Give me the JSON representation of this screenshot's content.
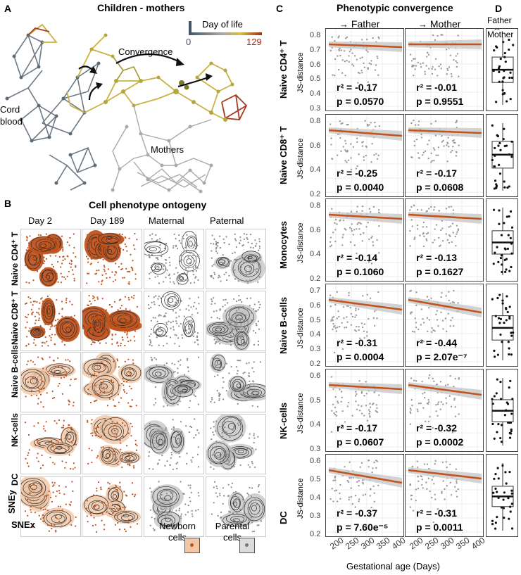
{
  "panelA": {
    "letter": "A",
    "title": "Children - mothers",
    "legend_title": "Day of life",
    "legend_min": "0",
    "legend_max": "129",
    "labels": {
      "convergence": "Convergence",
      "cord": "Cord\nblood",
      "cord1": "Cord",
      "cord2": "blood",
      "mothers": "Mothers"
    }
  },
  "panelB": {
    "letter": "B",
    "title": "Cell phenotype ontogeny",
    "columns": [
      "Day 2",
      "Day 189",
      "Maternal",
      "Paternal"
    ],
    "rows": [
      "Naive CD4⁺ T",
      "Naive CD8⁺ T",
      "Naive B-cells",
      "NK-cells",
      "DC"
    ],
    "xaxis": "SNEx",
    "yaxis": "SNEy",
    "legend_newborn": [
      "Newborn",
      "cells"
    ],
    "legend_parental": [
      "Parental",
      "cells"
    ]
  },
  "panelC": {
    "letter": "C",
    "title": "Phenotypic convergence",
    "col_father": "Father",
    "col_mother": "Mother",
    "ylabel": "JS-distance",
    "xlabel": "Gestational age (Days)",
    "xticks": [
      "200",
      "250",
      "300",
      "350",
      "400"
    ],
    "rows": [
      {
        "name": "Naive CD4⁺ T",
        "yticks": [
          "0.8",
          "0.7",
          "0.6",
          "0.5",
          "0.4",
          "0.3"
        ],
        "father": {
          "r2": "r² = -0.17",
          "p": "p = 0.0570"
        },
        "mother": {
          "r2": "r² = -0.01",
          "p": "p = 0.9551"
        }
      },
      {
        "name": "Naive CD8⁺ T",
        "yticks": [
          "0.8",
          "0.6",
          "0.4",
          "0.2"
        ],
        "father": {
          "r2": "r² = -0.25",
          "p": "p = 0.0040"
        },
        "mother": {
          "r2": "r² = -0.17",
          "p": "p = 0.0608"
        }
      },
      {
        "name": "Monocytes",
        "yticks": [
          "0.8",
          "0.6",
          "0.4",
          "0.2"
        ],
        "father": {
          "r2": "r² = -0.14",
          "p": "p = 0.1060"
        },
        "mother": {
          "r2": "r² = -0.13",
          "p": "p = 0.1627"
        }
      },
      {
        "name": "Naive B-cells",
        "yticks": [
          "0.7",
          "0.6",
          "0.5",
          "0.4",
          "0.3",
          "0.2"
        ],
        "father": {
          "r2": "r² = -0.31",
          "p": "p = 0.0004"
        },
        "mother": {
          "r2": "r² = -0.44",
          "p": "p = 2.07e⁻⁷"
        }
      },
      {
        "name": "NK-cells",
        "yticks": [
          "0.6",
          "0.5",
          "0.4",
          "0.3"
        ],
        "father": {
          "r2": "r² = -0.17",
          "p": "p = 0.0607"
        },
        "mother": {
          "r2": "r² = -0.32",
          "p": "p = 0.0002"
        }
      },
      {
        "name": "DC",
        "yticks": [
          "0.6",
          "0.5",
          "0.4",
          "0.3",
          "0.2"
        ],
        "father": {
          "r2": "r² = -0.37",
          "p": "p = 7.60e⁻⁵"
        },
        "mother": {
          "r2": "r² = -0.31",
          "p": "p = 0.0011"
        }
      }
    ]
  },
  "panelD": {
    "letter": "D",
    "header1": "Father",
    "header2": "Mother"
  },
  "colors": {
    "newborn": "#c1531d",
    "parental": "#8a8a8a",
    "regression": "#c1531d",
    "ci_band": "#c8c8c8",
    "points": "#9a9a9a"
  }
}
